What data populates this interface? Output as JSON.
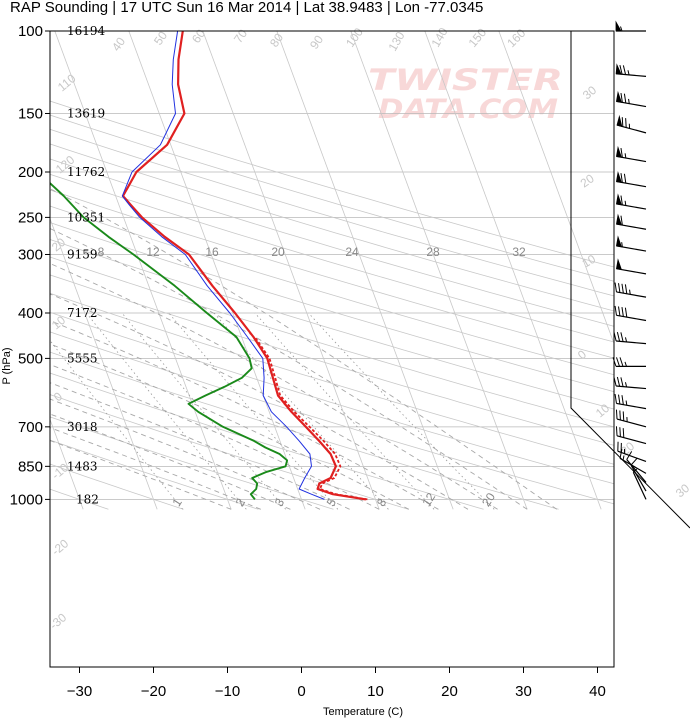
{
  "title": "RAP Sounding | 17 UTC Sun 16 Mar 2014 | Lat 38.9483 | Lon -77.0345",
  "watermark": [
    "TWISTER",
    "DATA.COM"
  ],
  "chart_data": {
    "type": "line",
    "subtype": "skew-t log-p sounding",
    "title": "RAP Sounding | 17 UTC Sun 16 Mar 2014 | Lat 38.9483 | Lon -77.0345",
    "xlabel": "Temperature (C)",
    "ylabel": "P (hPa)",
    "x_ticks": [
      -30,
      -20,
      -10,
      0,
      10,
      20,
      30,
      40
    ],
    "y_ticks": [
      100,
      150,
      200,
      250,
      300,
      400,
      500,
      700,
      850,
      1000
    ],
    "x_tick_labels": [
      "−30",
      "−20",
      "−10",
      "0",
      "10",
      "20",
      "30",
      "40"
    ],
    "y_tick_labels": [
      "100",
      "150",
      "200",
      "250",
      "300",
      "400",
      "500",
      "700",
      "850",
      "1000"
    ],
    "xlim": [
      -34,
      48
    ],
    "ylim": [
      1050,
      100
    ],
    "y_scale": "log",
    "grid": true,
    "heights": [
      {
        "p": 100,
        "label": "16194"
      },
      {
        "p": 150,
        "label": "13619"
      },
      {
        "p": 200,
        "label": "11762"
      },
      {
        "p": 250,
        "label": "10351"
      },
      {
        "p": 300,
        "label": "9159"
      },
      {
        "p": 400,
        "label": "7172"
      },
      {
        "p": 500,
        "label": "5555"
      },
      {
        "p": 700,
        "label": "3018"
      },
      {
        "p": 850,
        "label": "1483"
      },
      {
        "p": 1000,
        "label": "182"
      }
    ],
    "mixing_ratio_labels": [
      "8",
      "12",
      "16",
      "20",
      "24",
      "28",
      "32"
    ],
    "mixing_ratio_bottom_labels": [
      "1",
      "2",
      "3",
      "5",
      "8",
      "12",
      "20"
    ],
    "adiabat_labels": [
      "130",
      "140",
      "150",
      "160",
      "30",
      "20",
      "10",
      "0",
      "10",
      "20",
      "30",
      "40",
      "50",
      "60",
      "70",
      "80",
      "90",
      "100",
      "110",
      "120"
    ],
    "series": [
      {
        "name": "Temperature",
        "color": "#e02020",
        "points": [
          [
            1000,
            8.7
          ],
          [
            975,
            4.5
          ],
          [
            950,
            2.7
          ],
          [
            925,
            3.2
          ],
          [
            900,
            5.0
          ],
          [
            850,
            6.3
          ],
          [
            800,
            6.2
          ],
          [
            750,
            5.3
          ],
          [
            700,
            4.2
          ],
          [
            650,
            3.0
          ],
          [
            600,
            2.0
          ],
          [
            550,
            2.2
          ],
          [
            500,
            2.4
          ],
          [
            450,
            1.6
          ],
          [
            400,
            0.3
          ],
          [
            350,
            -1.4
          ],
          [
            300,
            -3.0
          ],
          [
            275,
            -5.4
          ],
          [
            250,
            -7.5
          ],
          [
            235,
            -8.4
          ],
          [
            225,
            -9.0
          ],
          [
            200,
            -6.0
          ],
          [
            175,
            -0.5
          ],
          [
            150,
            3.4
          ],
          [
            130,
            4.0
          ],
          [
            115,
            5.3
          ],
          [
            100,
            7.3
          ]
        ]
      },
      {
        "name": "Temperature (dotted)",
        "color": "#e02020",
        "points": [
          [
            1000,
            8.9
          ],
          [
            975,
            4.9
          ],
          [
            950,
            3.0
          ],
          [
            925,
            3.6
          ],
          [
            900,
            5.5
          ],
          [
            850,
            6.9
          ],
          [
            800,
            6.8
          ],
          [
            750,
            5.9
          ],
          [
            700,
            4.7
          ],
          [
            650,
            3.4
          ],
          [
            600,
            2.3
          ],
          [
            550,
            2.5
          ],
          [
            500,
            2.7
          ],
          [
            450,
            1.8
          ]
        ]
      },
      {
        "name": "Virtual-temperature parcel",
        "color": "#2030e0",
        "points": [
          [
            1000,
            3.1
          ],
          [
            975,
            1.6
          ],
          [
            950,
            0.2
          ],
          [
            900,
            1.5
          ],
          [
            850,
            3.0
          ],
          [
            800,
            3.4
          ],
          [
            750,
            2.6
          ],
          [
            700,
            1.6
          ],
          [
            650,
            0.3
          ],
          [
            600,
            0.0
          ],
          [
            550,
            1.0
          ],
          [
            500,
            1.8
          ],
          [
            450,
            0.8
          ],
          [
            400,
            -0.4
          ],
          [
            350,
            -2.1
          ],
          [
            300,
            -3.5
          ],
          [
            275,
            -5.8
          ],
          [
            250,
            -7.8
          ],
          [
            235,
            -8.6
          ],
          [
            225,
            -9.1
          ],
          [
            200,
            -6.6
          ],
          [
            175,
            -1.4
          ],
          [
            150,
            2.2
          ],
          [
            130,
            3.2
          ],
          [
            115,
            4.6
          ],
          [
            100,
            6.6
          ]
        ]
      },
      {
        "name": "Dewpoint",
        "color": "#1a8a1a",
        "points": [
          [
            1000,
            -6.3
          ],
          [
            975,
            -6.6
          ],
          [
            950,
            -5.6
          ],
          [
            925,
            -5.2
          ],
          [
            900,
            -5.6
          ],
          [
            875,
            -3.5
          ],
          [
            850,
            -0.5
          ],
          [
            825,
            0.0
          ],
          [
            800,
            -0.7
          ],
          [
            775,
            -2.3
          ],
          [
            750,
            -3.5
          ],
          [
            700,
            -7.0
          ],
          [
            650,
            -9.6
          ],
          [
            625,
            -10.5
          ],
          [
            600,
            -7.8
          ],
          [
            575,
            -4.8
          ],
          [
            550,
            -2.0
          ],
          [
            525,
            -0.2
          ],
          [
            500,
            0.0
          ],
          [
            450,
            -0.7
          ],
          [
            400,
            -3.5
          ],
          [
            350,
            -6.5
          ],
          [
            300,
            -10.5
          ],
          [
            275,
            -13.0
          ],
          [
            250,
            -15.4
          ],
          [
            225,
            -17.0
          ],
          [
            200,
            -19.3
          ],
          [
            175,
            -19.1
          ],
          [
            150,
            -22.2
          ],
          [
            130,
            -24.8
          ],
          [
            115,
            -27.2
          ],
          [
            100,
            -28.2
          ]
        ]
      }
    ],
    "wind_barbs": [
      {
        "p": 100,
        "dir": 270,
        "speed": 55
      },
      {
        "p": 125,
        "dir": 275,
        "speed": 75
      },
      {
        "p": 145,
        "dir": 280,
        "speed": 75
      },
      {
        "p": 165,
        "dir": 285,
        "speed": 75
      },
      {
        "p": 190,
        "dir": 280,
        "speed": 65
      },
      {
        "p": 215,
        "dir": 280,
        "speed": 70
      },
      {
        "p": 240,
        "dir": 280,
        "speed": 65
      },
      {
        "p": 265,
        "dir": 280,
        "speed": 60
      },
      {
        "p": 295,
        "dir": 280,
        "speed": 55
      },
      {
        "p": 330,
        "dir": 280,
        "speed": 50
      },
      {
        "p": 370,
        "dir": 280,
        "speed": 45
      },
      {
        "p": 415,
        "dir": 280,
        "speed": 40
      },
      {
        "p": 465,
        "dir": 275,
        "speed": 35
      },
      {
        "p": 520,
        "dir": 270,
        "speed": 35
      },
      {
        "p": 580,
        "dir": 275,
        "speed": 35
      },
      {
        "p": 640,
        "dir": 280,
        "speed": 35
      },
      {
        "p": 700,
        "dir": 285,
        "speed": 35
      },
      {
        "p": 760,
        "dir": 285,
        "speed": 30
      },
      {
        "p": 830,
        "dir": 290,
        "speed": 25
      },
      {
        "p": 880,
        "dir": 300,
        "speed": 15
      },
      {
        "p": 920,
        "dir": 320,
        "speed": 10
      },
      {
        "p": 960,
        "dir": 330,
        "speed": 10
      },
      {
        "p": 1000,
        "dir": 335,
        "speed": 5
      }
    ]
  }
}
